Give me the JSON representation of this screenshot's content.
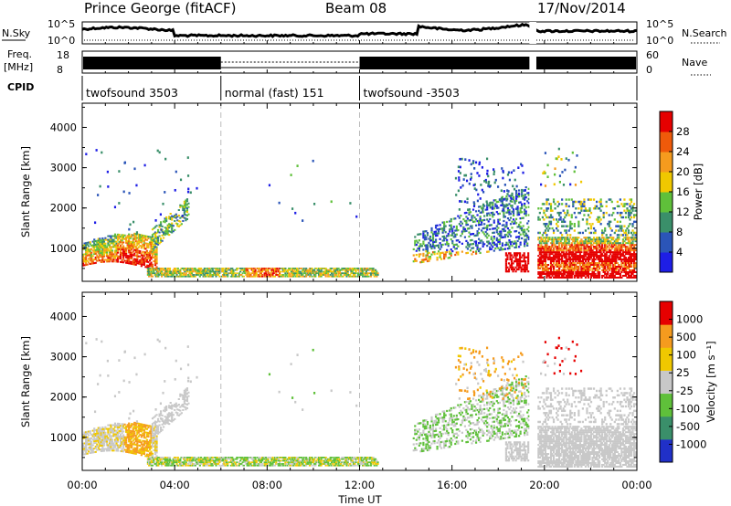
{
  "header": {
    "station": "Prince George (fitACF)",
    "beam": "Beam 08",
    "date": "17/Nov/2014"
  },
  "strips": {
    "nsky_label": "N.Sky",
    "nsky_ticks": [
      "10^5",
      "10^0"
    ],
    "nsearch_label": "N.Search",
    "nsearch_ticks": [
      "10^5",
      "10^0"
    ],
    "freq_label_1": "Freq.",
    "freq_label_2": "[MHz]",
    "freq_ticks": [
      "18",
      "8"
    ],
    "nave_label": "Nave",
    "nave_ticks": [
      "60",
      "0"
    ],
    "cpid_label": "CPID",
    "cpid_segments": [
      {
        "label": "twofsound 3503",
        "start": 0,
        "end": 6
      },
      {
        "label": "normal (fast) 151",
        "start": 6,
        "end": 12
      },
      {
        "label": "twofsound -3503",
        "start": 12,
        "end": 24
      }
    ]
  },
  "chart_data": [
    {
      "type": "heatmap",
      "quantity": "Power",
      "ylabel": "Slant Range [km]",
      "xlabel": "",
      "x_range_hours": [
        0,
        24
      ],
      "ylim": [
        180,
        4600
      ],
      "yticks": [
        "1000",
        "2000",
        "3000",
        "4000"
      ],
      "xticks": [],
      "colorbar_label": "Power [dB]",
      "colorbar_ticks": [
        "4",
        "8",
        "12",
        "16",
        "20",
        "24",
        "28"
      ],
      "colorbar_colors": [
        "#1e1ee6",
        "#2b55b8",
        "#3a8f6a",
        "#5fc03a",
        "#f0c800",
        "#f59b1e",
        "#ef5a0a",
        "#e60000"
      ]
    },
    {
      "type": "heatmap",
      "quantity": "Velocity",
      "ylabel": "Slant Range [km]",
      "xlabel": "Time UT",
      "x_range_hours": [
        0,
        24
      ],
      "ylim": [
        180,
        4600
      ],
      "yticks": [
        "1000",
        "2000",
        "3000",
        "4000"
      ],
      "xticks": [
        "00:00",
        "04:00",
        "08:00",
        "12:00",
        "16:00",
        "20:00",
        "00:00"
      ],
      "colorbar_label": "Velocity [m s⁻¹]",
      "colorbar_ticks": [
        "1000",
        "500",
        "100",
        "25",
        "-25",
        "-100",
        "-500",
        "-1000"
      ],
      "colorbar_colors": [
        "#2030c8",
        "#3a8f6a",
        "#5fc03a",
        "#c8c8c8",
        "#f0c800",
        "#f59b1e",
        "#e60000"
      ]
    }
  ]
}
